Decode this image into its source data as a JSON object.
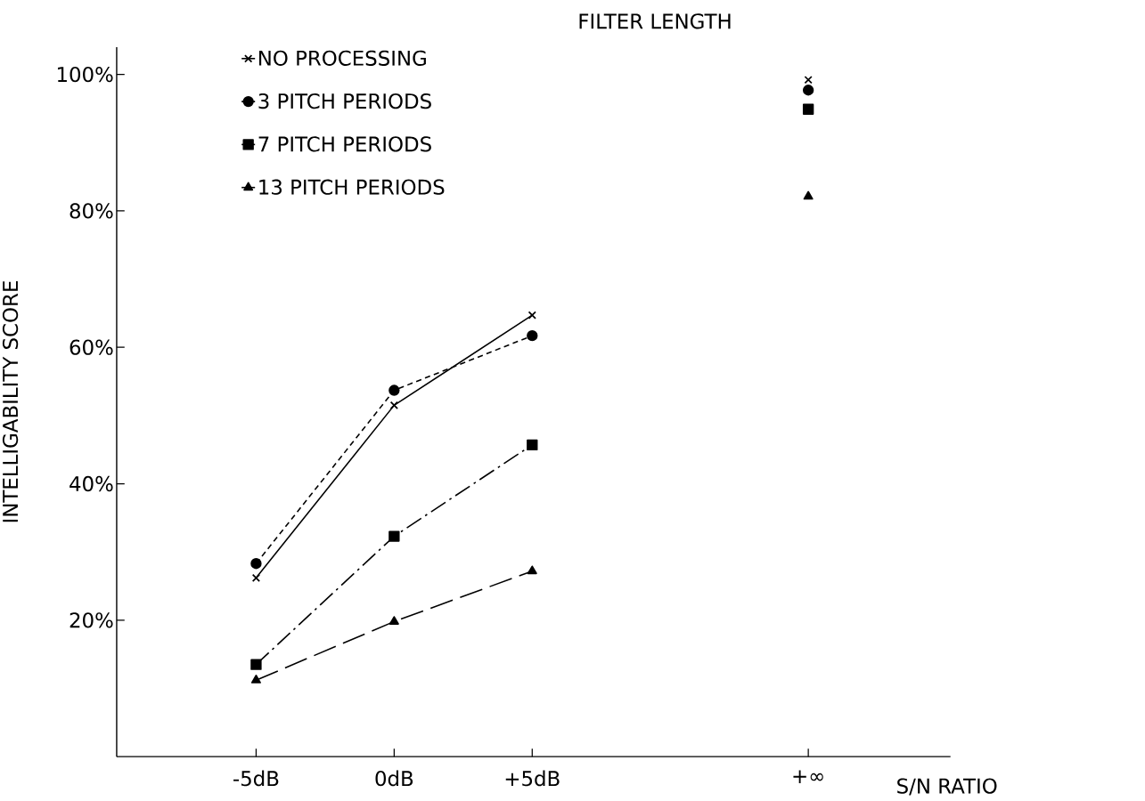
{
  "chart_data": {
    "type": "line",
    "legend_title": "FILTER LENGTH",
    "xlabel": "S/N RATIO",
    "ylabel": "INTELLIGABILITY SCORE",
    "categories": [
      "-5dB",
      "0dB",
      "+5dB",
      null,
      "+∞"
    ],
    "ylim": [
      0,
      104
    ],
    "yticks": [
      {
        "value": 20,
        "label": "20%"
      },
      {
        "value": 40,
        "label": "40%"
      },
      {
        "value": 60,
        "label": "60%"
      },
      {
        "value": 80,
        "label": "80%"
      },
      {
        "value": 100,
        "label": "100%"
      }
    ],
    "grid": false,
    "legend": "top left",
    "series": [
      {
        "name": "NO PROCESSING",
        "color": "#000000",
        "marker": "cross",
        "line_style": "solid",
        "values": [
          26.2,
          51.5,
          64.7,
          null,
          99.2
        ]
      },
      {
        "name": "3 PITCH PERIODS",
        "color": "#000000",
        "marker": "circle",
        "line_style": "dotted",
        "values": [
          28.3,
          53.7,
          61.7,
          null,
          97.7
        ]
      },
      {
        "name": "7 PITCH PERIODS",
        "color": "#000000",
        "marker": "square",
        "line_style": "dashdot",
        "values": [
          13.5,
          32.3,
          45.7,
          null,
          94.9
        ]
      },
      {
        "name": "13 PITCH PERIODS",
        "color": "#000000",
        "marker": "triangle",
        "line_style": "dashed",
        "values": [
          11.2,
          19.8,
          27.2,
          null,
          82.1
        ]
      }
    ]
  }
}
